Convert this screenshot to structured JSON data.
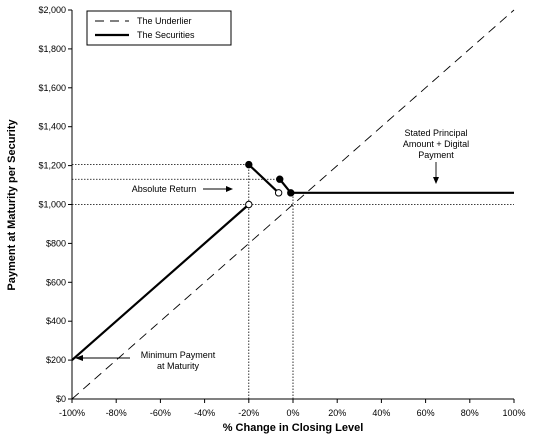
{
  "chart_data": {
    "type": "line",
    "title": "",
    "xlabel": "% Change in Closing Level",
    "ylabel": "Payment at Maturity per Security",
    "xlim": [
      -100,
      100
    ],
    "ylim": [
      0,
      2000
    ],
    "x_ticks": [
      -100,
      -80,
      -60,
      -40,
      -20,
      0,
      20,
      40,
      60,
      80,
      100
    ],
    "x_tick_labels": [
      "-100%",
      "-80%",
      "-60%",
      "-40%",
      "-20%",
      "0%",
      "20%",
      "40%",
      "60%",
      "80%",
      "100%"
    ],
    "y_ticks": [
      0,
      200,
      400,
      600,
      800,
      1000,
      1200,
      1400,
      1600,
      1800,
      2000
    ],
    "y_tick_labels": [
      "$0",
      "$200",
      "$400",
      "$600",
      "$800",
      "$1,000",
      "$1,200",
      "$1,400",
      "$1,600",
      "$1,800",
      "$2,000"
    ],
    "grid": false,
    "legend_position": "top-left",
    "series": [
      {
        "name": "The Underlier",
        "style": "dashed",
        "segments": [
          {
            "points": [
              [
                -100,
                0
              ],
              [
                100,
                2000
              ]
            ]
          }
        ]
      },
      {
        "name": "The Securities",
        "style": "solid",
        "segments": [
          {
            "points": [
              [
                -100,
                200
              ],
              [
                -20,
                1000
              ]
            ],
            "end_marker": "open"
          },
          {
            "points": [
              [
                -20,
                1205
              ],
              [
                -6.5,
                1060
              ]
            ],
            "start_marker": "filled",
            "end_marker": "open"
          },
          {
            "points": [
              [
                -6,
                1130
              ],
              [
                -1,
                1060
              ]
            ],
            "start_marker": "filled",
            "end_marker": "filled"
          },
          {
            "points": [
              [
                0,
                1060
              ],
              [
                100,
                1060
              ]
            ]
          }
        ]
      }
    ],
    "reference_lines": {
      "horizontal": [
        {
          "y": 1205,
          "x_to": -20
        },
        {
          "y": 1130,
          "x_to": -6
        },
        {
          "y": 1000,
          "x_to": 100
        }
      ],
      "vertical": [
        {
          "x": -20,
          "y_from": 0,
          "y_to": 1205
        },
        {
          "x": 0,
          "y_from": 0,
          "y_to": 1060
        }
      ]
    },
    "annotations": [
      {
        "id": "absolute",
        "lines": [
          "Absolute Return"
        ]
      },
      {
        "id": "stated",
        "lines": [
          "Stated Principal",
          "Amount + Digital",
          "Payment"
        ]
      },
      {
        "id": "minimum",
        "lines": [
          "Minimum Payment",
          "at Maturity"
        ]
      }
    ],
    "colors": {
      "line": "#000000",
      "reference": "#000000",
      "background": "#ffffff"
    }
  }
}
